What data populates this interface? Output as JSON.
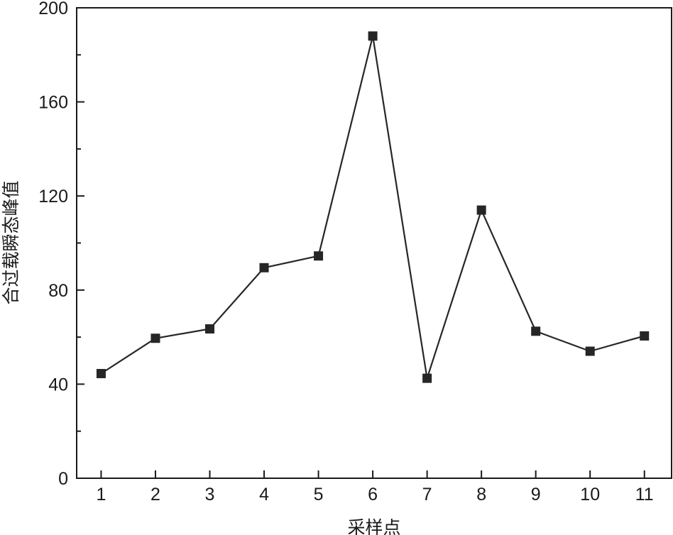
{
  "chart_data": {
    "type": "line",
    "title": "",
    "xlabel": "采样点",
    "ylabel": "合过载瞬态峰值",
    "x": [
      1,
      2,
      3,
      4,
      5,
      6,
      7,
      8,
      9,
      10,
      11
    ],
    "series": [
      {
        "values": [
          44.5,
          59.5,
          63.5,
          89.5,
          94.5,
          188,
          42.5,
          114,
          62.5,
          54,
          60.5
        ]
      }
    ],
    "xlim": [
      0.55,
      11.5
    ],
    "ylim": [
      0,
      200
    ],
    "yticks": [
      0,
      40,
      80,
      120,
      160,
      200
    ],
    "xticks": [
      1,
      2,
      3,
      4,
      5,
      6,
      7,
      8,
      9,
      10,
      11
    ],
    "grid": false,
    "marker": "square",
    "color": "#262626"
  }
}
